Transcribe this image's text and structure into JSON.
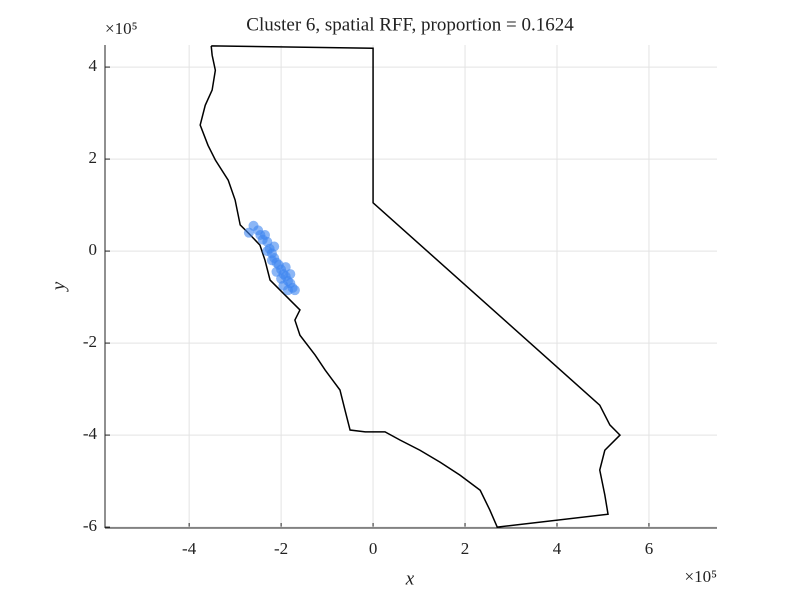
{
  "chart_data": {
    "type": "scatter",
    "title": "Cluster 6, spatial RFF, proportion = 0.1624",
    "x_label": "x",
    "y_label": "y",
    "x_multiplier": "×10⁵",
    "y_multiplier": "×10⁵",
    "xlim": [
      -5.83,
      7.48
    ],
    "ylim": [
      -6.02,
      4.48
    ],
    "xticks": [
      -4,
      -2,
      0,
      2,
      4,
      6
    ],
    "yticks": [
      -6,
      -4,
      -2,
      0,
      2,
      4
    ],
    "grid": true,
    "points": {
      "color": "#3d85f0",
      "x": [
        -2.6,
        -2.5,
        -2.45,
        -2.4,
        -2.3,
        -2.25,
        -2.2,
        -2.15,
        -2.1,
        -2.05,
        -2.0,
        -1.95,
        -1.9,
        -1.85,
        -1.8,
        -1.75,
        -1.7,
        -2.3,
        -2.2,
        -2.0,
        -1.9,
        -2.1,
        -1.8,
        -2.35,
        -2.7,
        -2.15,
        -1.95,
        -1.85
      ],
      "y": [
        0.55,
        0.45,
        0.35,
        0.25,
        0.2,
        0.05,
        -0.05,
        -0.15,
        -0.25,
        -0.3,
        -0.4,
        -0.5,
        -0.55,
        -0.65,
        -0.7,
        -0.8,
        -0.85,
        0.0,
        -0.2,
        -0.6,
        -0.35,
        -0.45,
        -0.5,
        0.35,
        0.4,
        0.1,
        -0.75,
        -0.85
      ]
    },
    "outline": {
      "color": "#000000",
      "x": [
        -3.52,
        0,
        0,
        4.93,
        5.15,
        5.37,
        5.04,
        4.93,
        5.04,
        5.11,
        2.7,
        2.54,
        2.33,
        1.89,
        1.46,
        1.02,
        0.59,
        0.26,
        -0.17,
        -0.5,
        -0.61,
        -0.72,
        -1.04,
        -1.26,
        -1.59,
        -1.7,
        -1.59,
        -1.8,
        -2.02,
        -2.24,
        -2.35,
        -2.46,
        -2.67,
        -2.89,
        -3.0,
        -3.15,
        -3.43,
        -3.59,
        -3.76,
        -3.65,
        -3.5,
        -3.43,
        -3.5,
        -3.52
      ],
      "y": [
        4.46,
        4.41,
        1.05,
        -3.35,
        -3.78,
        -4.0,
        -4.33,
        -4.76,
        -5.3,
        -5.72,
        -6.0,
        -5.63,
        -5.2,
        -4.87,
        -4.59,
        -4.33,
        -4.11,
        -3.93,
        -3.93,
        -3.89,
        -3.46,
        -3.02,
        -2.59,
        -2.26,
        -1.83,
        -1.5,
        -1.28,
        -1.07,
        -0.85,
        -0.63,
        -0.2,
        0.13,
        0.35,
        0.57,
        1.11,
        1.54,
        1.98,
        2.3,
        2.74,
        3.17,
        3.5,
        3.93,
        4.26,
        4.46
      ]
    }
  }
}
